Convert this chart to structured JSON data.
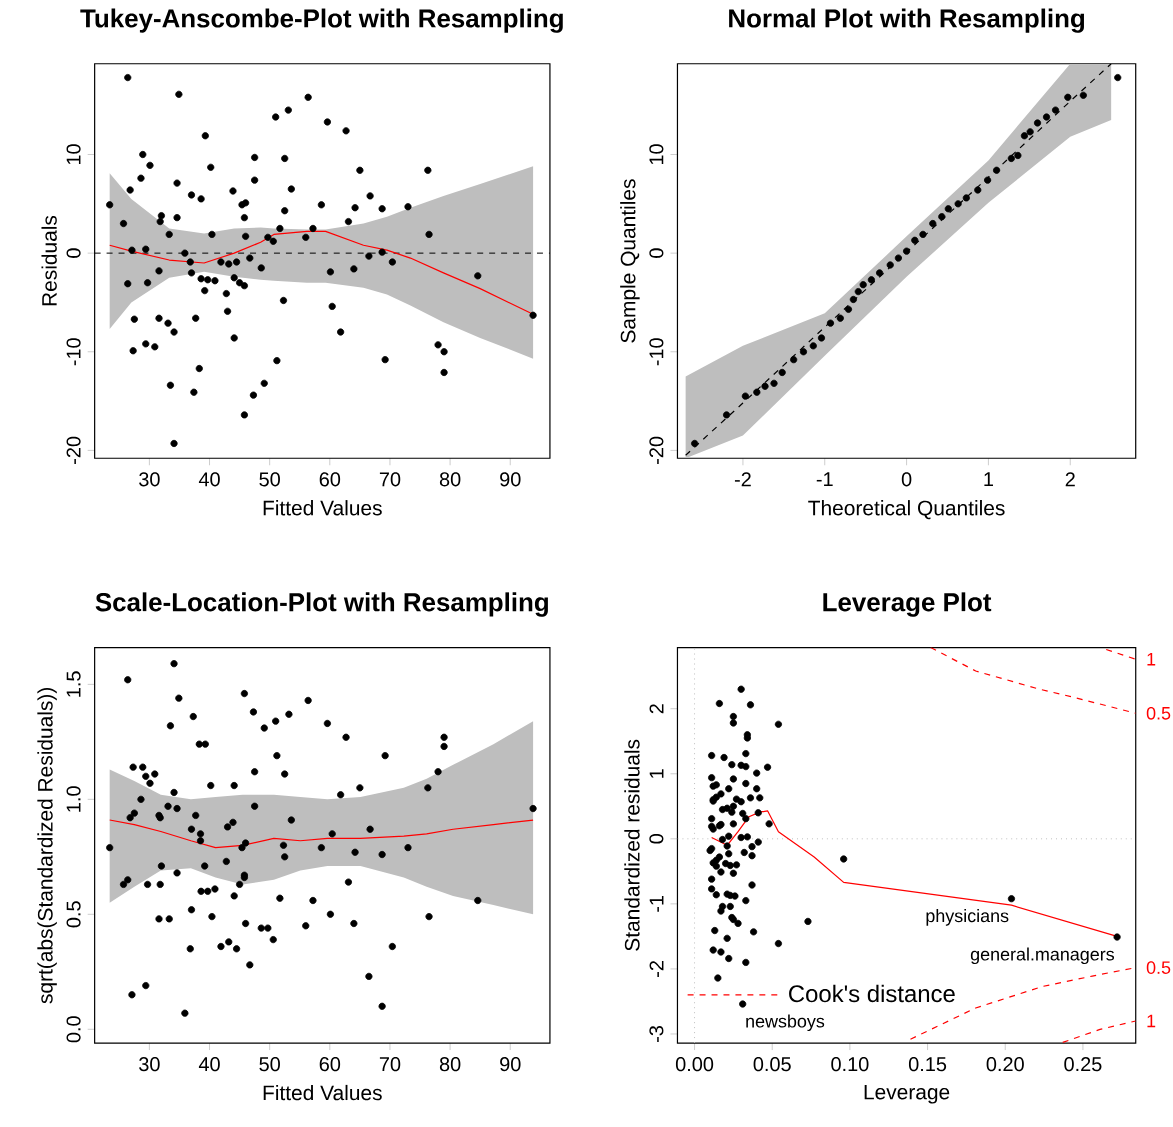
{
  "chart_data": [
    {
      "type": "scatter",
      "title": "Tukey-Anscombe-Plot with Resampling",
      "xlabel": "Fitted Values",
      "ylabel": "Residuals",
      "xlim": [
        20.9,
        96.6
      ],
      "ylim": [
        -20.8,
        19.2
      ],
      "xticks": [
        30,
        40,
        50,
        60,
        70,
        80,
        90
      ],
      "yticks": [
        -20,
        -10,
        0,
        10
      ],
      "ref_lines": [
        {
          "axis": "y",
          "value": 0,
          "color": "#000000",
          "line_style": "dashed"
        }
      ],
      "series": [
        {
          "color": "#000000",
          "x": [
            26.4,
            34.9,
            56.4,
            53.1,
            51.0,
            59.6,
            62.7,
            39.3,
            28.9,
            30.1,
            47.5,
            52.5,
            40.2,
            65.0,
            76.3,
            28.6,
            47.5,
            34.6,
            26.8,
            53.6,
            43.9,
            37.0,
            38.6,
            66.7,
            45.4,
            46.0,
            23.4,
            58.6,
            64.2,
            68.7,
            73.0,
            52.5,
            32.0,
            31.8,
            45.8,
            34.6,
            25.7,
            63.1,
            51.7,
            57.2,
            33.3,
            40.4,
            46.0,
            76.5,
            49.7,
            50.6,
            56.0,
            27.1,
            29.4,
            35.9,
            68.7,
            66.5,
            46.7,
            36.8,
            41.9,
            43.2,
            44.5,
            70.4,
            48.6,
            64.0,
            60.1,
            31.6,
            37.0,
            84.6,
            26.4,
            29.7,
            38.6,
            39.7,
            40.9,
            44.1,
            45.0,
            45.8,
            39.2,
            42.8,
            52.3,
            60.4,
            43.0,
            27.5,
            31.6,
            37.7,
            33.1,
            34.1,
            61.8,
            44.1,
            27.3,
            29.4,
            30.9,
            78.0,
            79.0,
            69.2,
            51.2,
            79.0,
            38.3,
            49.1,
            33.5,
            37.4,
            47.3,
            45.8,
            34.1,
            93.8
          ],
          "values": [
            17.8,
            16.1,
            15.8,
            14.5,
            13.8,
            13.3,
            12.4,
            11.9,
            10.0,
            8.9,
            9.7,
            9.6,
            8.7,
            8.4,
            8.4,
            7.6,
            7.4,
            7.1,
            6.4,
            6.5,
            6.3,
            5.9,
            5.5,
            5.8,
            4.9,
            5.1,
            4.9,
            4.9,
            4.6,
            4.5,
            4.7,
            4.3,
            3.8,
            3.2,
            3.6,
            3.6,
            3.0,
            3.2,
            2.5,
            2.5,
            1.9,
            1.9,
            1.7,
            1.9,
            1.6,
            1.2,
            1.6,
            0.3,
            0.4,
            0.0,
            0.1,
            -0.3,
            -0.5,
            -0.9,
            -0.9,
            -1.1,
            -0.9,
            -0.9,
            -1.5,
            -1.6,
            -1.9,
            -1.8,
            -2.0,
            -2.3,
            -3.1,
            -3.0,
            -2.6,
            -2.7,
            -2.8,
            -2.5,
            -3.0,
            -3.3,
            -3.8,
            -4.1,
            -4.8,
            -5.4,
            -5.9,
            -6.7,
            -6.6,
            -6.6,
            -7.1,
            -8.0,
            -8.0,
            -8.6,
            -9.9,
            -9.2,
            -9.5,
            -9.3,
            -10.0,
            -10.8,
            -10.9,
            -12.1,
            -11.7,
            -13.2,
            -13.4,
            -14.1,
            -14.4,
            -16.4,
            -19.3,
            -6.3
          ]
        },
        {
          "type": "line",
          "color": "#ff0000",
          "line_style": "solid",
          "x": [
            23.4,
            27.0,
            33.3,
            39.1,
            44.1,
            48.5,
            50.7,
            56.2,
            59.3,
            65.6,
            69.5,
            73.4,
            78.9,
            85.0,
            93.8
          ],
          "values": [
            0.8,
            0.2,
            -0.7,
            -1.0,
            0.0,
            1.1,
            1.9,
            2.2,
            2.2,
            0.8,
            0.3,
            -0.5,
            -2.0,
            -3.6,
            -6.2
          ],
          "upper": [
            8.1,
            5.5,
            2.5,
            2.0,
            2.5,
            2.6,
            2.5,
            2.4,
            2.4,
            3.0,
            3.7,
            4.6,
            5.8,
            7.0,
            8.8
          ],
          "lower": [
            -7.7,
            -5.0,
            -2.5,
            -1.9,
            -2.4,
            -2.7,
            -2.8,
            -3.0,
            -3.0,
            -3.5,
            -4.2,
            -5.3,
            -7.0,
            -8.6,
            -10.7
          ]
        }
      ]
    },
    {
      "type": "scatter",
      "title": "Normal Plot with Resampling",
      "xlabel": "Theoretical Quantiles",
      "ylabel": "Sample Quantiles",
      "xlim": [
        -2.8,
        2.8
      ],
      "ylim": [
        -20.8,
        19.2
      ],
      "xticks": [
        -2,
        -1,
        0,
        1,
        2
      ],
      "yticks": [
        -20,
        -10,
        0,
        10
      ],
      "series": [
        {
          "type": "line",
          "color": "#000000",
          "line_style": "dashed",
          "x": [
            -2.7,
            -2,
            -1,
            0,
            1,
            2,
            2.5
          ],
          "values": [
            -20.5,
            -15.2,
            -7.5,
            0.1,
            7.7,
            15.4,
            19.2
          ],
          "upper": [
            -12.5,
            -9.4,
            -6.1,
            1.7,
            9.4,
            19.2,
            19.2
          ],
          "lower": [
            -20.8,
            -18.5,
            -10.4,
            -2.4,
            5.1,
            11.8,
            13.5
          ]
        },
        {
          "color": "#000000",
          "x": [
            -2.59,
            -2.2,
            -1.97,
            -1.83,
            -1.73,
            -1.62,
            -1.52,
            -1.38,
            -1.26,
            -1.14,
            -1.04,
            -0.93,
            -0.81,
            -0.71,
            -0.65,
            -0.59,
            -0.53,
            -0.43,
            -0.33,
            -0.2,
            -0.1,
            0.0,
            0.1,
            0.2,
            0.32,
            0.43,
            0.51,
            0.63,
            0.73,
            0.87,
            0.99,
            1.1,
            1.28,
            1.36,
            1.44,
            1.51,
            1.6,
            1.71,
            1.82,
            1.97,
            2.16,
            2.58
          ],
          "values": [
            -19.3,
            -16.4,
            -14.5,
            -14.1,
            -13.5,
            -13.2,
            -12.1,
            -10.8,
            -10.0,
            -9.4,
            -8.6,
            -7.1,
            -6.6,
            -5.7,
            -4.7,
            -3.9,
            -3.2,
            -2.7,
            -2.0,
            -1.2,
            -0.5,
            0.2,
            1.3,
            1.9,
            3.0,
            3.7,
            4.5,
            5.0,
            5.6,
            6.4,
            7.4,
            8.4,
            9.6,
            9.9,
            11.9,
            12.3,
            13.2,
            13.8,
            14.5,
            15.8,
            16.0,
            17.8
          ]
        }
      ]
    },
    {
      "type": "scatter",
      "title": "Scale-Location-Plot with Resampling",
      "xlabel": "Fitted Values",
      "ylabel": "sqrt(abs(Standardized Residuals))",
      "xlim": [
        20.9,
        96.6
      ],
      "ylim": [
        -0.06,
        1.66
      ],
      "xticks": [
        30,
        40,
        50,
        60,
        70,
        80,
        90
      ],
      "yticks": [
        {
          "value": 0,
          "label": "0.0"
        },
        0.5,
        {
          "value": 1,
          "label": "1.0"
        },
        1.5
      ],
      "series": [
        {
          "color": "#000000",
          "x": [
            26.4,
            34.1,
            34.9,
            45.8,
            56.4,
            47.3,
            53.2,
            51.0,
            33.5,
            37.3,
            49.1,
            59.6,
            62.7,
            38.3,
            39.3,
            79.0,
            79.0,
            51.2,
            69.2,
            27.3,
            28.9,
            29.4,
            30.9,
            30.1,
            47.5,
            52.5,
            78.0,
            40.2,
            44.1,
            34.1,
            61.8,
            65.0,
            76.3,
            28.6,
            33.1,
            34.6,
            47.5,
            93.8,
            26.8,
            27.5,
            31.6,
            31.8,
            37.7,
            53.6,
            43.9,
            43.0,
            37.0,
            38.5,
            38.5,
            66.7,
            60.4,
            23.4,
            46.0,
            45.4,
            52.3,
            58.6,
            73.0,
            64.2,
            52.5,
            68.7,
            42.8,
            39.2,
            32.0,
            34.6,
            45.8,
            45.8,
            26.4,
            25.7,
            29.7,
            31.8,
            45.0,
            40.9,
            38.6,
            39.7,
            63.1,
            44.1,
            51.7,
            57.2,
            84.6,
            37.0,
            60.1,
            31.6,
            33.3,
            40.4,
            76.5,
            46.0,
            64.0,
            56.0,
            48.6,
            49.7,
            50.6,
            41.9,
            43.2,
            36.8,
            44.5,
            70.4,
            46.7,
            66.5,
            29.4,
            27.1,
            35.9,
            68.7
          ],
          "values": [
            1.52,
            1.59,
            1.44,
            1.46,
            1.43,
            1.38,
            1.37,
            1.34,
            1.32,
            1.36,
            1.31,
            1.33,
            1.27,
            1.24,
            1.24,
            1.27,
            1.23,
            1.19,
            1.19,
            1.14,
            1.14,
            1.1,
            1.11,
            1.07,
            1.12,
            1.11,
            1.12,
            1.06,
            1.06,
            1.03,
            1.02,
            1.05,
            1.05,
            1.0,
            0.97,
            0.96,
            0.97,
            0.96,
            0.92,
            0.94,
            0.93,
            0.92,
            0.93,
            0.91,
            0.9,
            0.88,
            0.87,
            0.85,
            0.82,
            0.87,
            0.85,
            0.79,
            0.81,
            0.79,
            0.8,
            0.79,
            0.79,
            0.77,
            0.75,
            0.76,
            0.73,
            0.71,
            0.71,
            0.68,
            0.67,
            0.66,
            0.65,
            0.63,
            0.63,
            0.63,
            0.63,
            0.61,
            0.6,
            0.6,
            0.64,
            0.58,
            0.57,
            0.56,
            0.56,
            0.52,
            0.5,
            0.48,
            0.48,
            0.49,
            0.49,
            0.46,
            0.46,
            0.45,
            0.44,
            0.44,
            0.39,
            0.36,
            0.38,
            0.35,
            0.35,
            0.36,
            0.28,
            0.23,
            0.19,
            0.15,
            0.07,
            0.1
          ]
        },
        {
          "type": "line",
          "color": "#ff0000",
          "line_style": "solid",
          "x": [
            23.4,
            27.5,
            31.9,
            36.9,
            41.0,
            45.5,
            50.7,
            55.1,
            59.6,
            65.1,
            72.3,
            76.1,
            80.5,
            87.2,
            93.8
          ],
          "values": [
            0.91,
            0.89,
            0.86,
            0.82,
            0.79,
            0.8,
            0.83,
            0.82,
            0.83,
            0.83,
            0.84,
            0.85,
            0.87,
            0.89,
            0.91
          ],
          "upper": [
            1.13,
            1.08,
            1.02,
            1.0,
            1.01,
            1.02,
            1.02,
            1.01,
            1.0,
            1.01,
            1.05,
            1.09,
            1.15,
            1.24,
            1.34
          ],
          "lower": [
            0.55,
            0.62,
            0.69,
            0.7,
            0.66,
            0.63,
            0.65,
            0.69,
            0.71,
            0.71,
            0.66,
            0.62,
            0.58,
            0.54,
            0.5
          ]
        }
      ]
    },
    {
      "type": "scatter",
      "title": "Leverage Plot",
      "xlabel": "Leverage",
      "ylabel": "Standardized residuals",
      "xlim": [
        -0.011,
        0.284
      ],
      "ylim": [
        -3.14,
        2.94
      ],
      "xticks": [
        {
          "value": 0,
          "label": "0.00"
        },
        0.05,
        {
          "value": 0.1,
          "label": "0.10"
        },
        0.15,
        {
          "value": 0.2,
          "label": "0.20"
        },
        0.25
      ],
      "yticks": [
        -3,
        -2,
        -1,
        0,
        1,
        2
      ],
      "legend": "bottom left",
      "ref_lines": [
        {
          "axis": "x",
          "value": 0,
          "color": "#bebebe",
          "line_style": "dotted"
        },
        {
          "axis": "y",
          "value": 0,
          "color": "#bebebe",
          "line_style": "dotted"
        }
      ],
      "series": [
        {
          "type": "line",
          "name": "Cook's distance",
          "color": "#ff0000",
          "line_style": "dashed",
          "x": [
            0.139,
            0.181,
            0.224,
            0.256,
            0.284
          ],
          "values": [
            -3.08,
            -2.6,
            -2.27,
            -2.11,
            -1.98
          ]
        },
        {
          "type": "line",
          "color": "#ff0000",
          "line_style": "dashed",
          "x": [
            0.152,
            0.181,
            0.222,
            0.245,
            0.284
          ],
          "values": [
            2.94,
            2.58,
            2.3,
            2.17,
            1.93
          ]
        },
        {
          "type": "line",
          "color": "#ff0000",
          "line_style": "dashed",
          "x": [
            0.265,
            0.284
          ],
          "values": [
            2.91,
            2.76
          ]
        },
        {
          "type": "line",
          "color": "#ff0000",
          "line_style": "dashed",
          "x": [
            0.237,
            0.261,
            0.284
          ],
          "values": [
            -3.13,
            -2.93,
            -2.8
          ]
        },
        {
          "color": "#000000",
          "x": [
            0.03,
            0.016,
            0.036,
            0.025,
            0.025,
            0.054,
            0.034,
            0.034,
            0.033,
            0.011,
            0.019,
            0.024,
            0.03,
            0.033,
            0.047,
            0.04,
            0.011,
            0.025,
            0.012,
            0.014,
            0.033,
            0.022,
            0.04,
            0.012,
            0.014,
            0.017,
            0.012,
            0.027,
            0.03,
            0.036,
            0.042,
            0.018,
            0.021,
            0.024,
            0.025,
            0.031,
            0.041,
            0.011,
            0.033,
            0.011,
            0.012,
            0.017,
            0.016,
            0.025,
            0.048,
            0.018,
            0.022,
            0.03,
            0.034,
            0.041,
            0.037,
            0.021,
            0.011,
            0.01,
            0.032,
            0.037,
            0.022,
            0.016,
            0.014,
            0.012,
            0.014,
            0.02,
            0.023,
            0.027,
            0.025,
            0.017,
            0.096,
            0.011,
            0.011,
            0.037,
            0.014,
            0.021,
            0.023,
            0.026,
            0.033,
            0.018,
            0.017,
            0.023,
            0.024,
            0.025,
            0.028,
            0.073,
            0.204,
            0.272,
            0.013,
            0.021,
            0.038,
            0.054,
            0.012,
            0.017,
            0.022,
            0.033,
            0.015,
            0.031
          ],
          "values": [
            2.3,
            2.08,
            2.06,
            1.88,
            1.78,
            1.76,
            1.6,
            1.55,
            1.31,
            1.28,
            1.25,
            1.14,
            1.13,
            1.11,
            1.1,
            1.01,
            0.94,
            0.92,
            0.81,
            0.83,
            0.85,
            0.77,
            0.77,
            0.6,
            0.64,
            0.69,
            0.58,
            0.61,
            0.57,
            0.63,
            0.63,
            0.45,
            0.47,
            0.41,
            0.5,
            0.39,
            0.4,
            0.31,
            0.31,
            0.19,
            0.15,
            0.22,
            0.2,
            0.23,
            0.23,
            -0.01,
            0.04,
            0.02,
            0.03,
            -0.05,
            -0.12,
            -0.11,
            -0.15,
            -0.18,
            -0.21,
            -0.26,
            -0.23,
            -0.28,
            -0.33,
            -0.37,
            -0.42,
            -0.38,
            -0.41,
            -0.4,
            -0.53,
            -0.51,
            -0.31,
            -0.62,
            -0.77,
            -0.71,
            -0.86,
            -0.85,
            -0.87,
            -0.88,
            -0.95,
            -1.04,
            -1.11,
            -1.04,
            -1.21,
            -1.24,
            -1.3,
            -1.27,
            -0.92,
            -1.51,
            -1.41,
            -1.53,
            -1.43,
            -1.61,
            -1.71,
            -1.74,
            -1.84,
            -1.9,
            -2.14,
            -2.54
          ]
        },
        {
          "type": "line",
          "color": "#ff0000",
          "line_style": "solid",
          "x": [
            0.011,
            0.021,
            0.028,
            0.035,
            0.042,
            0.047,
            0.054,
            0.077,
            0.096,
            0.204,
            0.272
          ],
          "values": [
            0.02,
            -0.1,
            0.11,
            0.34,
            0.41,
            0.43,
            0.11,
            -0.28,
            -0.67,
            -1.02,
            -1.5
          ]
        }
      ],
      "annotations": [
        {
          "text": "physicians",
          "x": 0.204,
          "y": -0.92
        },
        {
          "text": "general.managers",
          "x": 0.272,
          "y": -1.51
        },
        {
          "text": "newsboys",
          "x": 0.031,
          "y": -2.54
        },
        {
          "text": "1",
          "x": 0.284,
          "y": 2.76
        },
        {
          "text": "0.5",
          "x": 0.284,
          "y": 1.93
        },
        {
          "text": "0.5",
          "x": 0.284,
          "y": -1.98
        },
        {
          "text": "1",
          "x": 0.284,
          "y": -2.8
        }
      ]
    }
  ]
}
